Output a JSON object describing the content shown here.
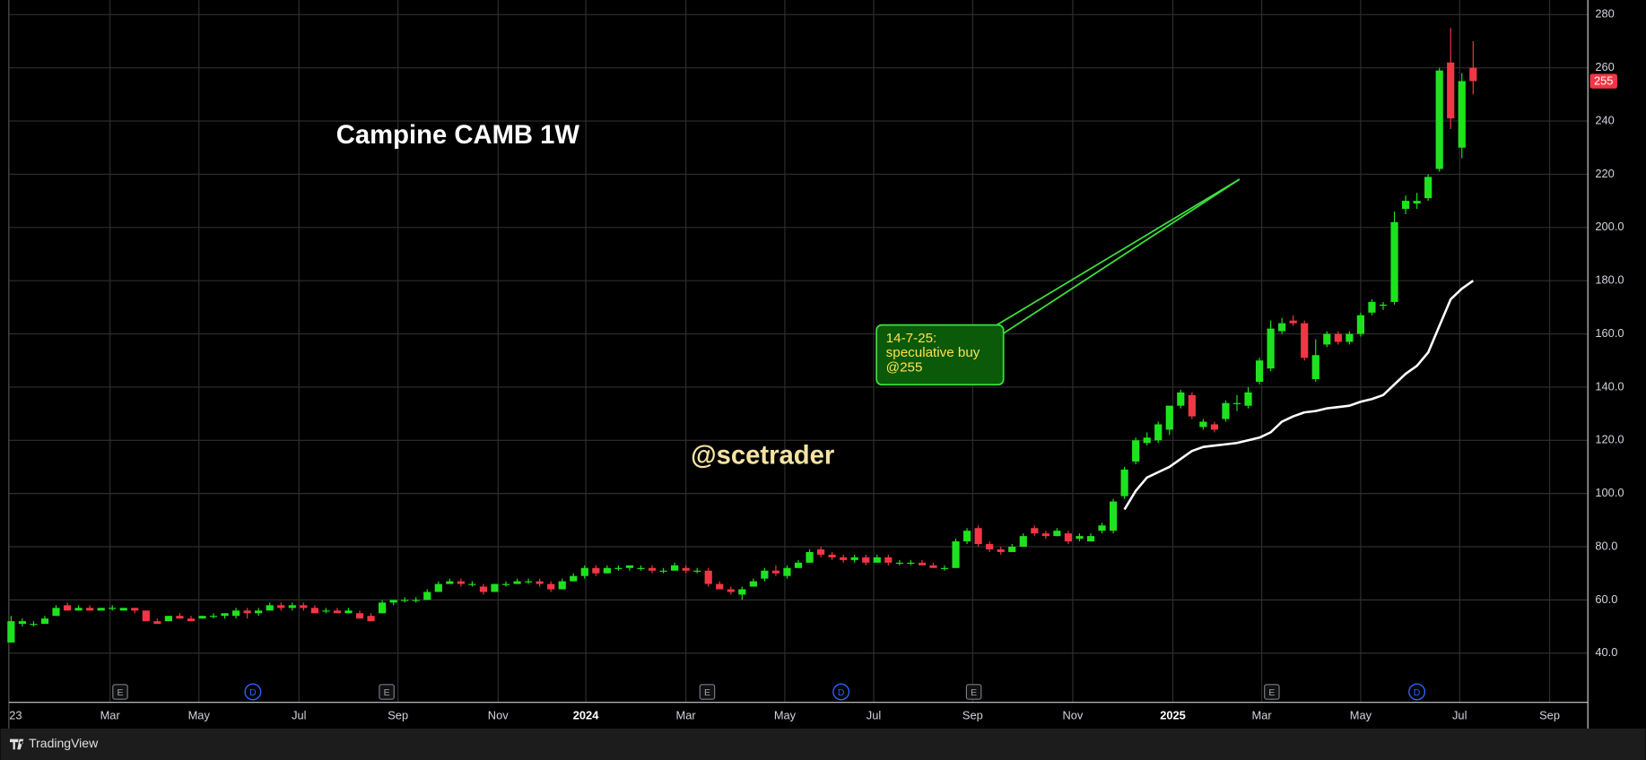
{
  "chart_data": {
    "type": "candlestick",
    "title": "Campine CAMB 1W",
    "watermark": "@scetrader",
    "annotation": [
      "14-7-25:",
      "speculative buy",
      "@255"
    ],
    "footer": "TradingView",
    "last_price": 255,
    "up_color": "#1fe21f",
    "down_color": "#f23645",
    "grid": true,
    "xlim": [
      -0.2,
      140.2
    ],
    "ylim": [
      21.5,
      285.5
    ],
    "yticks": [
      {
        "value": 40,
        "label": "40.0"
      },
      {
        "value": 60,
        "label": "60.0"
      },
      {
        "value": 80,
        "label": "80.0"
      },
      {
        "value": 100,
        "label": "100.0"
      },
      {
        "value": 120,
        "label": "120.0"
      },
      {
        "value": 140,
        "label": "140.0"
      },
      {
        "value": 160,
        "label": "160.0"
      },
      {
        "value": 180,
        "label": "180.0"
      },
      {
        "value": 200,
        "label": "200.0"
      },
      220,
      240,
      260,
      280
    ],
    "xticks": [
      {
        "value": 0.4,
        "label": "23"
      },
      {
        "value": 8.8,
        "label": "Mar"
      },
      {
        "value": 16.7,
        "label": "May"
      },
      {
        "value": 25.6,
        "label": "Jul"
      },
      {
        "value": 34.4,
        "label": "Sep"
      },
      {
        "value": 43.3,
        "label": "Nov"
      },
      {
        "value": 51.1,
        "label": "2024"
      },
      {
        "value": 60.0,
        "label": "Mar"
      },
      {
        "value": 68.8,
        "label": "May"
      },
      {
        "value": 76.7,
        "label": "Jul"
      },
      {
        "value": 85.5,
        "label": "Sep"
      },
      {
        "value": 94.4,
        "label": "Nov"
      },
      {
        "value": 103.3,
        "label": "2025"
      },
      {
        "value": 111.2,
        "label": "Mar"
      },
      {
        "value": 120.0,
        "label": "May"
      },
      {
        "value": 128.8,
        "label": "Jul"
      },
      {
        "value": 136.8,
        "label": "Sep"
      }
    ],
    "events": [
      {
        "x": 9.7,
        "label": "E"
      },
      {
        "x": 21.5,
        "label": "D"
      },
      {
        "x": 33.4,
        "label": "E"
      },
      {
        "x": 61.9,
        "label": "E"
      },
      {
        "x": 73.8,
        "label": "D"
      },
      {
        "x": 85.6,
        "label": "E"
      },
      {
        "x": 112.1,
        "label": "E"
      },
      {
        "x": 125.0,
        "label": "D"
      }
    ],
    "x": [
      0,
      1,
      2,
      3,
      4,
      5,
      6,
      7,
      8,
      9,
      10,
      11,
      12,
      13,
      14,
      15,
      16,
      17,
      18,
      19,
      20,
      21,
      22,
      23,
      24,
      25,
      26,
      27,
      28,
      29,
      30,
      31,
      32,
      33,
      34,
      35,
      36,
      37,
      38,
      39,
      40,
      41,
      42,
      43,
      44,
      45,
      46,
      47,
      48,
      49,
      50,
      51,
      52,
      53,
      54,
      55,
      56,
      57,
      58,
      59,
      60,
      61,
      62,
      63,
      64,
      65,
      66,
      67,
      68,
      69,
      70,
      71,
      72,
      73,
      74,
      75,
      76,
      77,
      78,
      79,
      80,
      81,
      82,
      83,
      84,
      85,
      86,
      87,
      88,
      89,
      90,
      91,
      92,
      93,
      94,
      95,
      96,
      97,
      98,
      99,
      100,
      101,
      102,
      103,
      104,
      105,
      106,
      107,
      108,
      109,
      110,
      111,
      112,
      113,
      114,
      115,
      116,
      117,
      118,
      119,
      120,
      121,
      122,
      123,
      124,
      125,
      126,
      127,
      128,
      129,
      130
    ],
    "ohlc": [
      [
        44,
        54,
        44,
        52
      ],
      [
        51,
        53,
        50,
        52
      ],
      [
        51,
        52,
        50,
        51
      ],
      [
        51,
        54,
        51,
        53
      ],
      [
        54,
        58,
        54,
        57
      ],
      [
        58,
        59,
        56,
        56
      ],
      [
        56,
        58,
        56,
        57
      ],
      [
        57,
        58,
        56,
        56
      ],
      [
        56,
        57,
        56,
        57
      ],
      [
        57,
        58,
        56,
        57
      ],
      [
        56,
        57,
        56,
        57
      ],
      [
        57,
        57,
        55,
        56
      ],
      [
        56,
        56,
        52,
        52
      ],
      [
        52,
        53,
        51,
        51
      ],
      [
        52,
        54,
        52,
        54
      ],
      [
        54,
        55,
        53,
        53
      ],
      [
        53,
        54,
        52,
        52
      ],
      [
        53,
        54,
        53,
        54
      ],
      [
        54,
        55,
        53,
        54
      ],
      [
        54,
        55,
        53,
        55
      ],
      [
        54,
        57,
        53,
        56
      ],
      [
        56,
        57,
        53,
        55
      ],
      [
        55,
        57,
        54,
        56
      ],
      [
        56,
        59,
        56,
        58
      ],
      [
        58,
        59,
        56,
        57
      ],
      [
        57,
        59,
        56,
        58
      ],
      [
        58,
        59,
        56,
        57
      ],
      [
        57,
        58,
        55,
        55
      ],
      [
        56,
        57,
        55,
        56
      ],
      [
        56,
        57,
        55,
        55
      ],
      [
        55,
        57,
        55,
        56
      ],
      [
        55,
        56,
        53,
        53
      ],
      [
        54,
        55,
        52,
        52
      ],
      [
        55,
        60,
        55,
        59
      ],
      [
        59,
        60,
        58,
        60
      ],
      [
        60,
        61,
        59,
        60
      ],
      [
        60,
        61,
        59,
        60
      ],
      [
        60,
        64,
        60,
        63
      ],
      [
        63,
        67,
        63,
        66
      ],
      [
        66,
        68,
        66,
        67
      ],
      [
        67,
        68,
        65,
        66
      ],
      [
        66,
        67,
        65,
        66
      ],
      [
        65,
        66,
        62,
        63
      ],
      [
        63,
        66,
        63,
        66
      ],
      [
        66,
        67,
        65,
        66
      ],
      [
        66,
        68,
        66,
        67
      ],
      [
        67,
        68,
        66,
        67
      ],
      [
        67,
        68,
        65,
        66
      ],
      [
        66,
        67,
        63,
        64
      ],
      [
        64,
        68,
        64,
        67
      ],
      [
        67,
        70,
        67,
        69
      ],
      [
        69,
        73,
        68,
        72
      ],
      [
        72,
        73,
        69,
        70
      ],
      [
        70,
        73,
        70,
        72
      ],
      [
        72,
        73,
        71,
        72
      ],
      [
        72,
        73,
        71,
        73
      ],
      [
        72,
        73,
        71,
        72
      ],
      [
        72,
        73,
        70,
        71
      ],
      [
        71,
        72,
        70,
        71
      ],
      [
        71,
        74,
        71,
        73
      ],
      [
        72,
        73,
        70,
        71
      ],
      [
        71,
        72,
        70,
        71
      ],
      [
        71,
        72,
        65,
        66
      ],
      [
        66,
        67,
        64,
        64
      ],
      [
        64,
        65,
        62,
        63
      ],
      [
        62,
        65,
        60,
        64
      ],
      [
        65,
        68,
        65,
        67
      ],
      [
        68,
        72,
        67,
        71
      ],
      [
        71,
        73,
        69,
        70
      ],
      [
        69,
        73,
        68,
        72
      ],
      [
        72,
        75,
        72,
        74
      ],
      [
        74,
        79,
        74,
        78
      ],
      [
        79,
        80,
        76,
        77
      ],
      [
        77,
        78,
        75,
        76
      ],
      [
        76,
        77,
        74,
        75
      ],
      [
        75,
        77,
        74,
        76
      ],
      [
        76,
        77,
        73,
        74
      ],
      [
        74,
        77,
        74,
        76
      ],
      [
        76,
        77,
        73,
        74
      ],
      [
        74,
        75,
        73,
        74
      ],
      [
        74,
        75,
        73,
        74
      ],
      [
        74,
        75,
        73,
        73
      ],
      [
        73,
        74,
        72,
        72
      ],
      [
        72,
        73,
        71,
        72
      ],
      [
        72,
        83,
        72,
        82
      ],
      [
        82,
        87,
        81,
        86
      ],
      [
        87,
        88,
        80,
        81
      ],
      [
        81,
        82,
        78,
        79
      ],
      [
        79,
        80,
        77,
        78
      ],
      [
        78,
        81,
        78,
        80
      ],
      [
        80,
        85,
        80,
        84
      ],
      [
        87,
        88,
        84,
        85
      ],
      [
        85,
        86,
        83,
        84
      ],
      [
        84,
        87,
        84,
        86
      ],
      [
        85,
        86,
        81,
        82
      ],
      [
        83,
        85,
        82,
        84
      ],
      [
        82,
        85,
        82,
        84
      ],
      [
        86,
        89,
        85,
        88
      ],
      [
        86,
        98,
        85,
        97
      ],
      [
        99,
        110,
        98,
        109
      ],
      [
        112,
        121,
        111,
        120
      ],
      [
        119,
        123,
        118,
        121
      ],
      [
        120,
        127,
        119,
        126
      ],
      [
        124,
        133,
        122,
        133
      ],
      [
        133,
        139,
        132,
        138
      ],
      [
        137,
        138,
        128,
        129
      ],
      [
        125,
        128,
        124,
        127
      ],
      [
        126,
        127,
        123,
        124
      ],
      [
        128,
        135,
        127,
        134
      ],
      [
        134,
        137,
        131,
        134
      ],
      [
        133,
        140,
        132,
        138
      ],
      [
        142,
        151,
        141,
        150
      ],
      [
        147,
        165,
        146,
        162
      ],
      [
        161,
        166,
        160,
        164
      ],
      [
        165,
        167,
        163,
        164
      ],
      [
        164,
        165,
        150,
        151
      ],
      [
        143,
        158,
        142,
        152
      ],
      [
        156,
        161,
        155,
        160
      ],
      [
        160,
        161,
        156,
        157
      ],
      [
        157,
        161,
        156,
        160
      ],
      [
        160,
        168,
        159,
        167
      ],
      [
        168,
        173,
        167,
        172
      ],
      [
        171,
        172,
        169,
        171
      ],
      [
        172,
        206,
        171,
        202
      ],
      [
        207,
        212,
        205,
        210
      ],
      [
        209,
        213,
        207,
        210
      ],
      [
        211,
        220,
        210,
        219
      ],
      [
        222,
        260,
        221,
        259
      ],
      [
        262,
        275,
        237,
        241
      ],
      [
        230,
        258,
        226,
        255
      ],
      [
        260,
        270,
        250,
        255
      ]
    ],
    "line": {
      "color": "#ffffff",
      "x": [
        99,
        100,
        101,
        102,
        103,
        104,
        105,
        106,
        107,
        108,
        109,
        110,
        111,
        112,
        113,
        114,
        115,
        116,
        117,
        118,
        119,
        120,
        121,
        122,
        123,
        124,
        125,
        126,
        127,
        128,
        129,
        130
      ],
      "values": [
        94,
        101,
        106,
        108,
        110,
        113,
        116,
        117.5,
        118,
        118.5,
        119,
        120,
        121,
        123,
        127,
        129,
        130.5,
        131,
        132,
        132.5,
        133,
        134.5,
        135.5,
        137,
        141,
        145,
        148,
        153,
        163,
        173,
        177,
        180
      ]
    }
  }
}
